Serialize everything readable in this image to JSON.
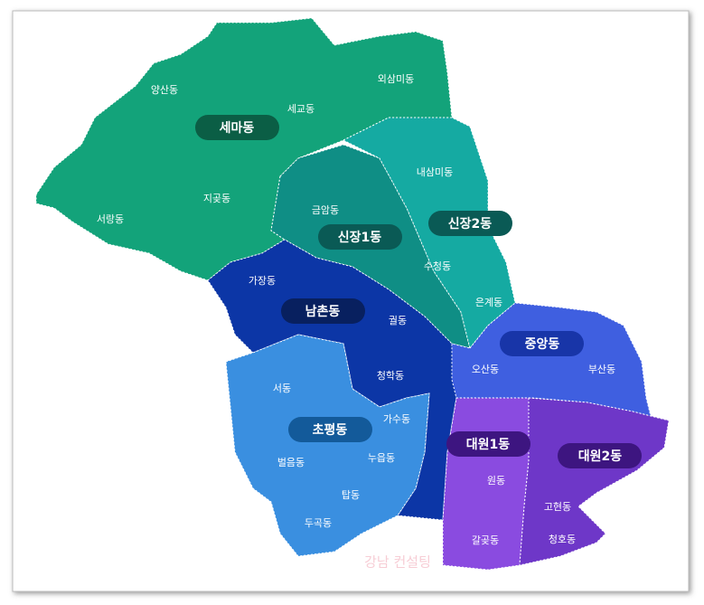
{
  "districts": [
    "세마동",
    "신장1동",
    "신장2동",
    "남촌동",
    "중앙동",
    "초평동",
    "대원1동",
    "대원2동"
  ],
  "neighborhoods": [
    "양산동",
    "외삼미동",
    "세교동",
    "내삼미동",
    "금암동",
    "서랑동",
    "지곶동",
    "수청동",
    "가장동",
    "은계동",
    "궐동",
    "오산동",
    "부산동",
    "청학동",
    "서동",
    "가수동",
    "벌음동",
    "누읍동",
    "원동",
    "탑동",
    "고현동",
    "두곡동",
    "갈곶동",
    "청호동"
  ],
  "watermark": "강남 컨설팅"
}
